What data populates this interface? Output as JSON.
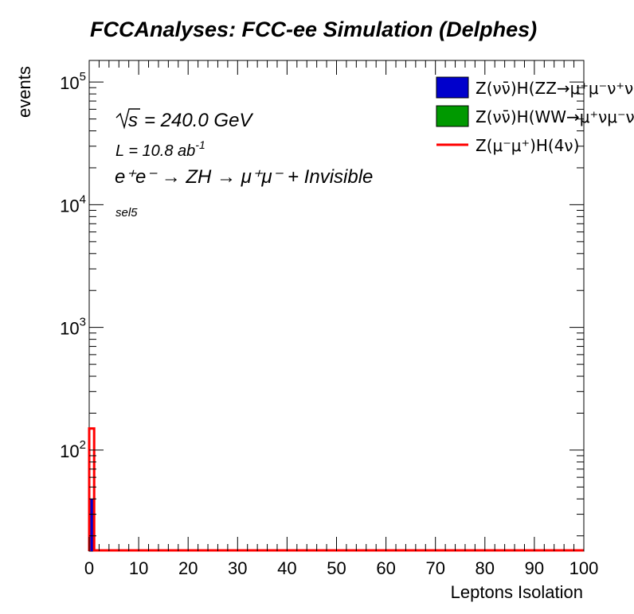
{
  "chart_data": {
    "type": "histogram",
    "title": "FCCAnalyses: FCC-ee Simulation (Delphes)",
    "xlabel": "Leptons Isolation",
    "ylabel": "events",
    "xlim": [
      0,
      100
    ],
    "ylim": [
      15,
      150000
    ],
    "yscale": "log",
    "grid": false,
    "x_ticks": [
      "0",
      "10",
      "20",
      "30",
      "40",
      "50",
      "60",
      "70",
      "80",
      "90",
      "100"
    ],
    "y_ticks": [
      {
        "value": 100,
        "base": "10",
        "exp": "2"
      },
      {
        "value": 1000,
        "base": "10",
        "exp": "3"
      },
      {
        "value": 10000,
        "base": "10",
        "exp": "4"
      },
      {
        "value": 100000,
        "base": "10",
        "exp": "5"
      }
    ],
    "annotations": {
      "sqrt_s": "= 240.0 GeV",
      "sqrt_s_symbol": "s",
      "lumi_main": "L = 10.8 ab",
      "lumi_exp": "-1",
      "process": "e⁺e⁻ → ZH → μ⁺μ⁻ + Invisible",
      "selection": "sel5"
    },
    "legend_position": "top-right",
    "series": [
      {
        "name": "Z(νν̄)H(ZZ→μ⁺μ⁻ν⁺ν⁻)",
        "style": "filled",
        "color": "#0000cc",
        "bins": [
          [
            0,
            1,
            40
          ]
        ]
      },
      {
        "name": "Z(νν̄)H(WW→μ⁺νμ⁻ν)",
        "style": "filled",
        "color": "#009900",
        "bins": []
      },
      {
        "name": "Z(μ⁻μ⁺)H(4ν)",
        "style": "line",
        "color": "#ff0000",
        "bins": [
          [
            0,
            1,
            150
          ]
        ]
      }
    ]
  }
}
